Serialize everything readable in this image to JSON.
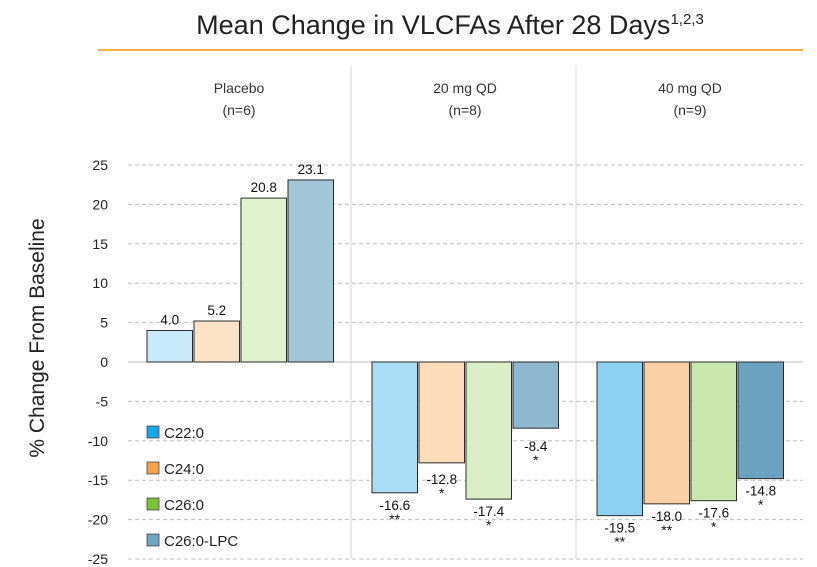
{
  "chart_data": {
    "type": "bar",
    "title": "Mean Change in VLCFAs After 28 Days",
    "title_superscript": "1,2,3",
    "ylabel": "% Change From Baseline",
    "ylim": [
      -25,
      25
    ],
    "yticks": [
      25,
      20,
      15,
      10,
      5,
      0,
      -5,
      -10,
      -15,
      -20,
      -25
    ],
    "grid": true,
    "legend_position": "bottom-left",
    "groups": [
      {
        "name": "Placebo",
        "n": "(n=6)"
      },
      {
        "name": "20 mg QD",
        "n": "(n=8)"
      },
      {
        "name": "40 mg QD",
        "n": "(n=9)"
      }
    ],
    "series": [
      {
        "name": "C22:0",
        "legend_color": "#1aa7e8",
        "fills": [
          "#c7e9f9",
          "#a9def6",
          "#8dd1f2"
        ],
        "values": [
          4.0,
          -16.6,
          -19.5
        ],
        "labels": [
          "4.0",
          "-16.6",
          "-19.5"
        ],
        "significance": [
          "",
          "**",
          "**"
        ]
      },
      {
        "name": "C24:0",
        "legend_color": "#f7a14a",
        "fills": [
          "#fbe3c8",
          "#fcdcb9",
          "#fbd0a4"
        ],
        "values": [
          5.2,
          -12.8,
          -18.0
        ],
        "labels": [
          "5.2",
          "-12.8",
          "-18.0"
        ],
        "significance": [
          "",
          "*",
          "**"
        ]
      },
      {
        "name": "C26:0",
        "legend_color": "#79c23a",
        "fills": [
          "#dff1cd",
          "#d9eec6",
          "#c9e6ad"
        ],
        "values": [
          20.8,
          -17.4,
          -17.6
        ],
        "labels": [
          "20.8",
          "-17.4",
          "-17.6"
        ],
        "significance": [
          "",
          "*",
          "*"
        ]
      },
      {
        "name": "C26:0-LPC",
        "legend_color": "#6fa6c2",
        "fills": [
          "#a3c6d9",
          "#8db8cf",
          "#6aa2c0"
        ],
        "values": [
          23.1,
          -8.4,
          -14.8
        ],
        "labels": [
          "23.1",
          "-8.4",
          "-14.8"
        ],
        "significance": [
          "",
          "*",
          "*"
        ]
      }
    ]
  },
  "colors": {
    "title_rule": "#f3b04a",
    "grid": "#bdbdbd",
    "divider": "#d4d4d4",
    "bar_stroke": "#2a2a2a"
  }
}
